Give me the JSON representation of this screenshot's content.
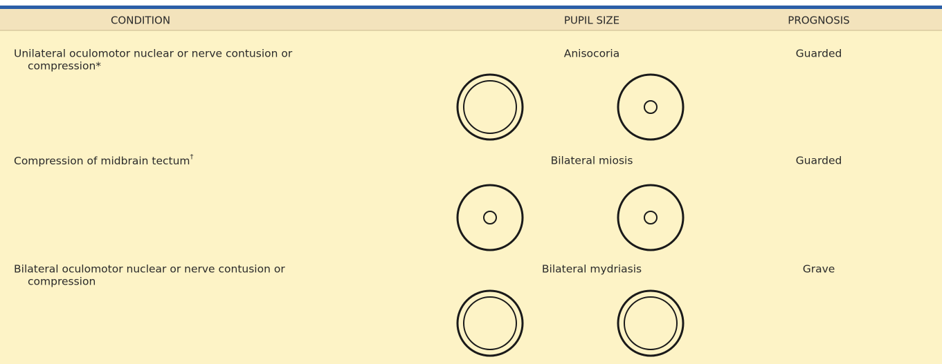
{
  "table": {
    "headers": [
      "CONDITION",
      "PUPIL SIZE",
      "PROGNOSIS"
    ],
    "rows": [
      {
        "condition": [
          "Unilateral oculomotor nuclear or nerve contusion or",
          "compression*"
        ],
        "pupil_size": "Anisocoria",
        "prognosis": "Guarded"
      },
      {
        "condition": [
          "Compression of midbrain tectum"
        ],
        "footnote_mark": "†",
        "pupil_size": "Bilateral miosis",
        "prognosis": "Guarded"
      },
      {
        "condition": [
          "Bilateral oculomotor nuclear or nerve contusion or",
          "compression"
        ],
        "pupil_size": "Bilateral mydriasis",
        "prognosis": "Grave"
      }
    ]
  }
}
